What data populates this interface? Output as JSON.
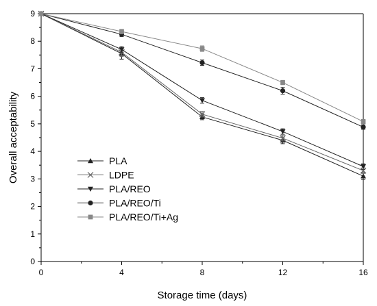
{
  "chart_data": {
    "type": "line",
    "xlabel": "Storage time (days)",
    "ylabel": "Overall acceptability",
    "x": [
      0,
      4,
      8,
      12,
      16
    ],
    "xlim": [
      0,
      16
    ],
    "ylim": [
      0,
      9
    ],
    "xticks": [
      0,
      4,
      8,
      12,
      16
    ],
    "yticks": [
      0,
      1,
      2,
      3,
      4,
      5,
      6,
      7,
      8,
      9
    ],
    "legend_position": "left-middle",
    "grid": false,
    "series": [
      {
        "name": "PLA",
        "marker": "triangle-up",
        "color": "#222222",
        "values": [
          9.0,
          7.55,
          5.25,
          4.4,
          3.1
        ],
        "errors": [
          0,
          0.2,
          0.1,
          0.12,
          0.12
        ]
      },
      {
        "name": "LDPE",
        "marker": "x",
        "color": "#666666",
        "values": [
          9.0,
          7.6,
          5.35,
          4.48,
          3.3
        ],
        "errors": [
          0,
          0.15,
          0.1,
          0.1,
          0.1
        ]
      },
      {
        "name": "PLA/REO",
        "marker": "triangle-down",
        "color": "#222222",
        "values": [
          9.0,
          7.7,
          5.85,
          4.72,
          3.45
        ],
        "errors": [
          0,
          0.1,
          0.1,
          0.1,
          0.1
        ]
      },
      {
        "name": "PLA/REO/Ti",
        "marker": "circle",
        "color": "#222222",
        "values": [
          9.0,
          8.25,
          7.22,
          6.2,
          4.88
        ],
        "errors": [
          0,
          0.08,
          0.1,
          0.12,
          0.08
        ]
      },
      {
        "name": "PLA/REO/Ti+Ag",
        "marker": "square",
        "color": "#888888",
        "values": [
          9.0,
          8.35,
          7.73,
          6.5,
          5.08
        ],
        "errors": [
          0,
          0.08,
          0.1,
          0.08,
          0.08
        ]
      }
    ]
  }
}
